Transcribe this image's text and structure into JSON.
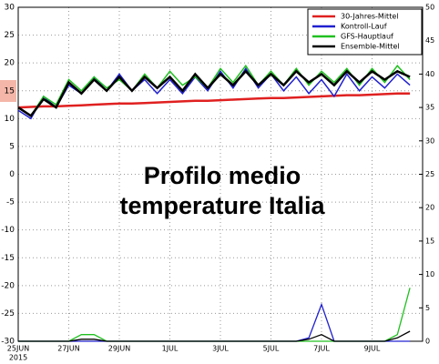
{
  "chart_data": {
    "type": "line",
    "overlay_text": [
      "Profilo medio",
      "temperature Italia"
    ],
    "year_label": "2015",
    "x": [
      0,
      0.5,
      1,
      1.5,
      2,
      2.5,
      3,
      3.5,
      4,
      4.5,
      5,
      5.5,
      6,
      6.5,
      7,
      7.5,
      8,
      8.5,
      9,
      9.5,
      10,
      10.5,
      11,
      11.5,
      12,
      12.5,
      13,
      13.5,
      14,
      14.5,
      15,
      15.5
    ],
    "xlim": [
      0,
      16
    ],
    "xticks": [
      {
        "value": 0,
        "label": "25JUN"
      },
      {
        "value": 2,
        "label": "27JUN"
      },
      {
        "value": 4,
        "label": "29JUN"
      },
      {
        "value": 6,
        "label": "1JUL"
      },
      {
        "value": 8,
        "label": "3JUL"
      },
      {
        "value": 10,
        "label": "5JUL"
      },
      {
        "value": 12,
        "label": "7JUL"
      },
      {
        "value": 14,
        "label": "9JUL"
      }
    ],
    "ylim": [
      -30,
      30
    ],
    "yticks": [
      30,
      25,
      20,
      15,
      10,
      5,
      0,
      -5,
      -10,
      -15,
      -20,
      -25,
      -30
    ],
    "y2lim": [
      0,
      50
    ],
    "y2ticks": [
      50,
      45,
      40,
      35,
      30,
      25,
      20,
      15,
      10,
      5,
      0
    ],
    "grid": true,
    "legend": "top-right",
    "series": [
      {
        "name": "30-Jahres-Mittel",
        "color": "#e02020",
        "width": 2.5,
        "values": [
          12.0,
          12.1,
          12.2,
          12.2,
          12.3,
          12.4,
          12.5,
          12.6,
          12.7,
          12.7,
          12.8,
          12.9,
          13.0,
          13.1,
          13.2,
          13.2,
          13.3,
          13.4,
          13.5,
          13.6,
          13.7,
          13.7,
          13.8,
          13.9,
          14.0,
          14.1,
          14.2,
          14.2,
          14.3,
          14.4,
          14.5,
          14.5
        ]
      },
      {
        "name": "Kontroll-Lauf",
        "color": "#2020d0",
        "width": 1.5,
        "values": [
          11.5,
          10,
          14,
          12,
          16,
          14.5,
          17.5,
          15,
          18,
          15,
          17,
          14.5,
          17,
          14.5,
          17.5,
          15,
          18.5,
          15.5,
          19,
          15.5,
          18,
          15,
          17.5,
          14.5,
          17,
          14,
          18,
          15,
          17.5,
          15.5,
          18,
          16
        ],
        "precip": [
          0,
          0,
          0,
          0,
          0,
          0,
          0,
          0,
          0,
          0,
          0,
          0,
          0,
          0,
          0,
          0,
          0,
          0,
          0,
          0,
          0,
          0,
          0,
          0.5,
          5.5,
          0,
          0,
          0,
          0,
          0,
          0,
          0
        ]
      },
      {
        "name": "GFS-Hauptlauf",
        "color": "#20c020",
        "width": 1.5,
        "values": [
          12,
          10.5,
          14,
          12.5,
          17,
          15,
          17.5,
          15.5,
          17,
          15,
          18,
          15.5,
          18.5,
          16,
          17.5,
          15.5,
          19,
          16.5,
          19.5,
          16,
          18.5,
          16,
          19,
          16,
          18.5,
          16.5,
          19,
          16,
          19,
          16.5,
          19.5,
          17
        ],
        "precip": [
          0,
          0,
          0,
          0,
          0,
          1,
          1,
          0,
          0,
          0,
          0,
          0,
          0,
          0,
          0,
          0,
          0,
          0,
          0,
          0,
          0,
          0,
          0,
          0,
          0,
          0,
          0,
          0,
          0,
          0,
          1,
          8
        ]
      },
      {
        "name": "Ensemble-Mittel",
        "color": "#000000",
        "width": 2.5,
        "values": [
          12,
          10.5,
          13.5,
          12,
          16.5,
          14.5,
          17,
          15,
          17.5,
          15,
          17.5,
          15.5,
          17.5,
          15,
          18,
          15.5,
          18,
          16,
          18.5,
          16,
          18,
          16,
          18.5,
          16.5,
          18,
          16,
          18.5,
          16.5,
          18.5,
          17,
          18.5,
          17.5
        ],
        "precip": [
          0,
          0,
          0,
          0,
          0,
          0.3,
          0.3,
          0,
          0,
          0,
          0,
          0,
          0,
          0,
          0,
          0,
          0,
          0,
          0,
          0,
          0,
          0,
          0,
          0.3,
          1,
          0,
          0,
          0,
          0,
          0,
          0.5,
          1.5
        ]
      }
    ]
  }
}
